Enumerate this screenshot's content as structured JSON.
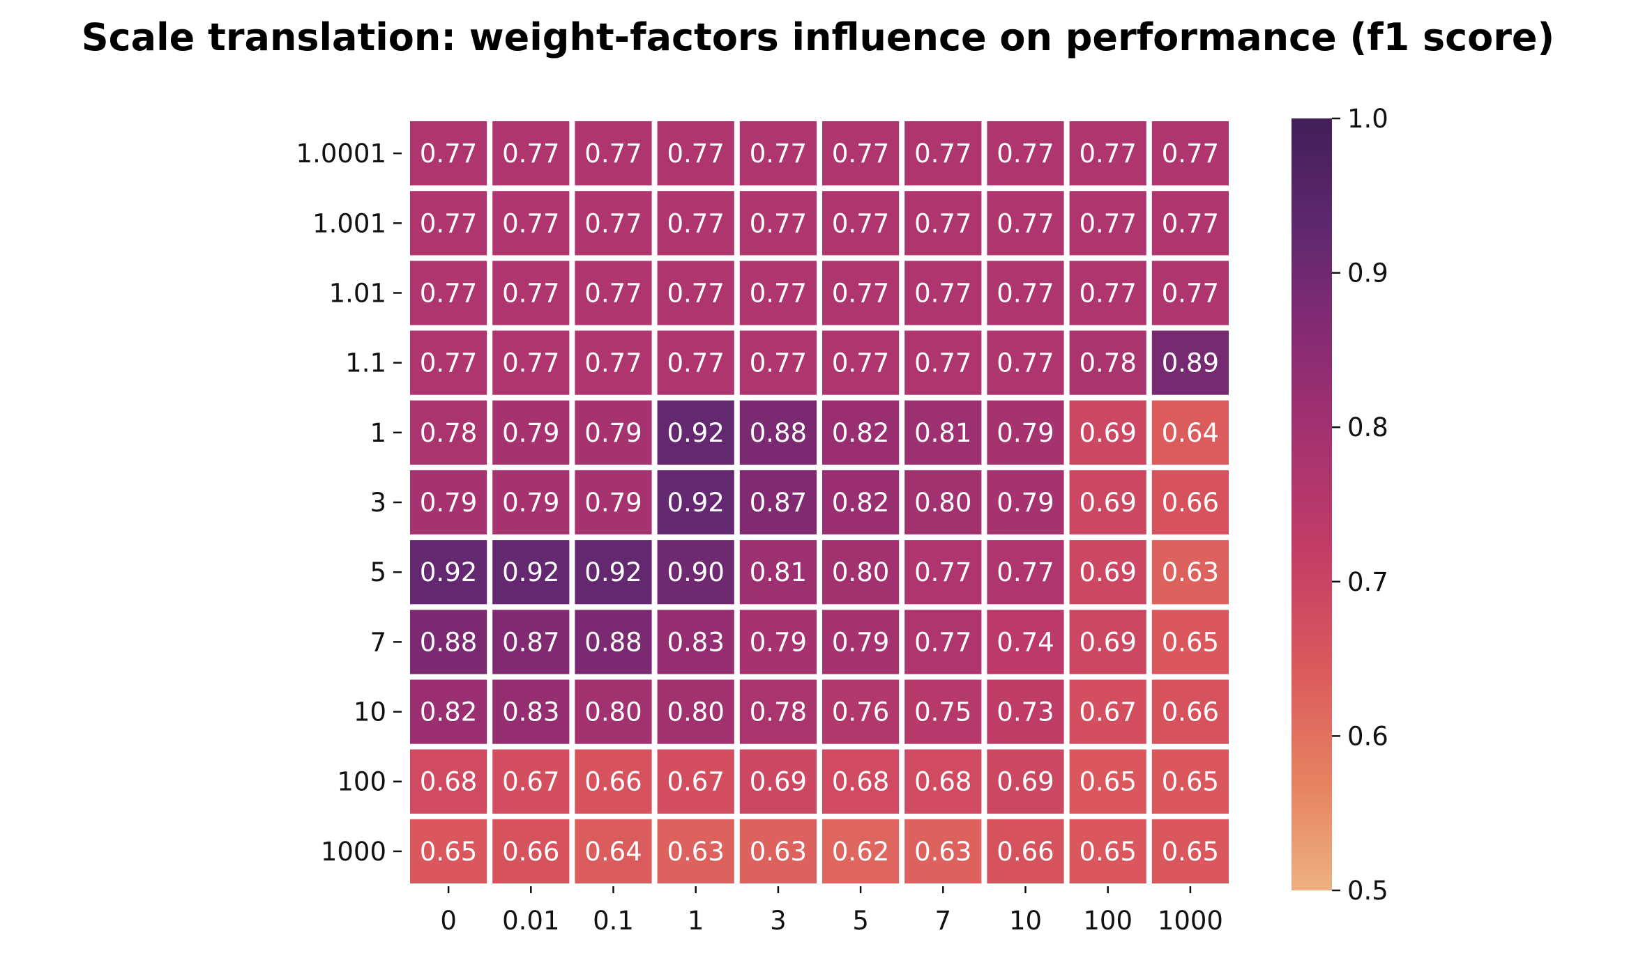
{
  "chart_data": {
    "type": "heatmap",
    "title": "Scale translation: weight-factors influence on performance (f1 score)",
    "xlabel": "",
    "ylabel": "",
    "x_categories": [
      "0",
      "0.01",
      "0.1",
      "1",
      "3",
      "5",
      "7",
      "10",
      "100",
      "1000"
    ],
    "y_categories": [
      "1.0001",
      "1.001",
      "1.01",
      "1.1",
      "1",
      "3",
      "5",
      "7",
      "10",
      "100",
      "1000"
    ],
    "values": [
      [
        0.77,
        0.77,
        0.77,
        0.77,
        0.77,
        0.77,
        0.77,
        0.77,
        0.77,
        0.77
      ],
      [
        0.77,
        0.77,
        0.77,
        0.77,
        0.77,
        0.77,
        0.77,
        0.77,
        0.77,
        0.77
      ],
      [
        0.77,
        0.77,
        0.77,
        0.77,
        0.77,
        0.77,
        0.77,
        0.77,
        0.77,
        0.77
      ],
      [
        0.77,
        0.77,
        0.77,
        0.77,
        0.77,
        0.77,
        0.77,
        0.77,
        0.78,
        0.89
      ],
      [
        0.78,
        0.79,
        0.79,
        0.92,
        0.88,
        0.82,
        0.81,
        0.79,
        0.69,
        0.64
      ],
      [
        0.79,
        0.79,
        0.79,
        0.92,
        0.87,
        0.82,
        0.8,
        0.79,
        0.69,
        0.66
      ],
      [
        0.92,
        0.92,
        0.92,
        0.9,
        0.81,
        0.8,
        0.77,
        0.77,
        0.69,
        0.63
      ],
      [
        0.88,
        0.87,
        0.88,
        0.83,
        0.79,
        0.79,
        0.77,
        0.74,
        0.69,
        0.65
      ],
      [
        0.82,
        0.83,
        0.8,
        0.8,
        0.78,
        0.76,
        0.75,
        0.73,
        0.67,
        0.66
      ],
      [
        0.68,
        0.67,
        0.66,
        0.67,
        0.69,
        0.68,
        0.68,
        0.69,
        0.65,
        0.65
      ],
      [
        0.65,
        0.66,
        0.64,
        0.63,
        0.63,
        0.62,
        0.63,
        0.66,
        0.65,
        0.65
      ]
    ],
    "color_range": [
      0.5,
      1.0
    ],
    "colorbar_ticks": [
      "0.5",
      "0.6",
      "0.7",
      "0.8",
      "0.9",
      "1.0"
    ],
    "colormap": "flare",
    "colormap_stops": [
      "#edb081",
      "#e68161",
      "#db5a5c",
      "#c53e65",
      "#a8336f",
      "#882b73",
      "#5f2870",
      "#421e58"
    ],
    "cell_gap_color": "#ffffff",
    "label_color": "#ffffff"
  }
}
